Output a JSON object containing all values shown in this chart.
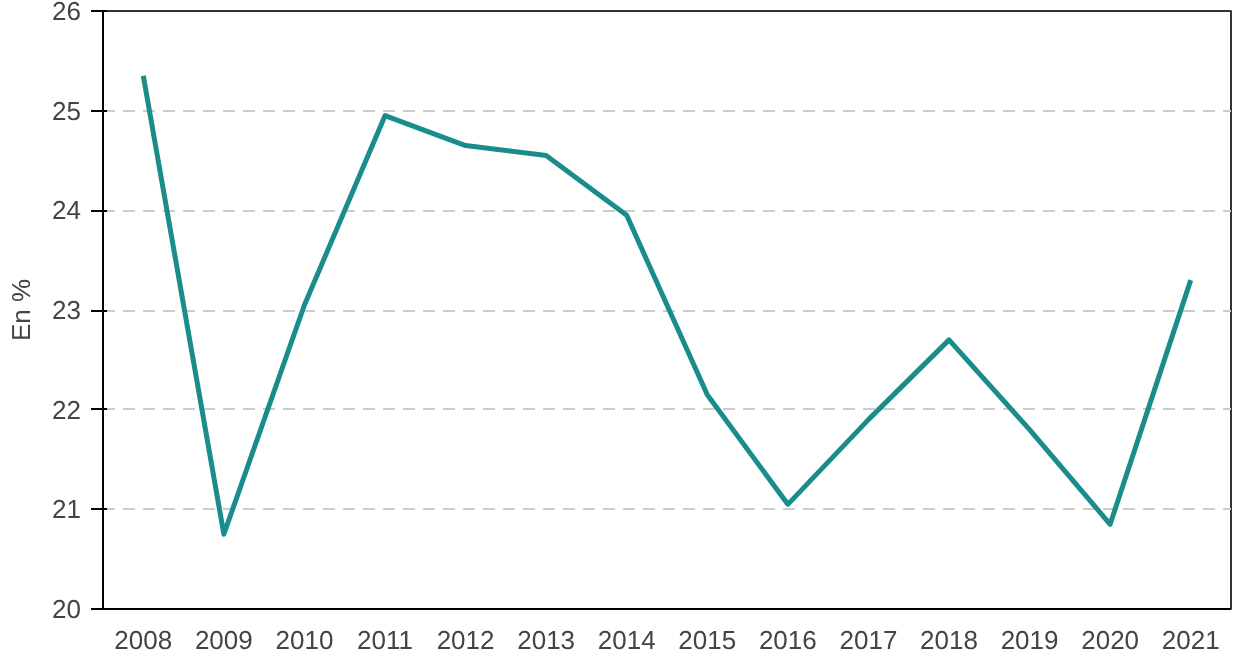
{
  "chart_data": {
    "type": "line",
    "ylabel": "En %",
    "categories": [
      "2008",
      "2009",
      "2010",
      "2011",
      "2012",
      "2013",
      "2014",
      "2015",
      "2016",
      "2017",
      "2018",
      "2019",
      "2020",
      "2021"
    ],
    "series": [
      {
        "color": "#1a8c8c",
        "values": [
          25.35,
          20.75,
          23.05,
          24.95,
          24.65,
          24.55,
          23.95,
          22.15,
          21.05,
          21.9,
          22.7,
          21.8,
          20.85,
          23.3
        ]
      }
    ],
    "ylim": [
      20,
      26
    ],
    "yticks": [
      20,
      21,
      22,
      23,
      24,
      25,
      26
    ],
    "grid": "y",
    "line_style": "solid",
    "marker": "none"
  }
}
